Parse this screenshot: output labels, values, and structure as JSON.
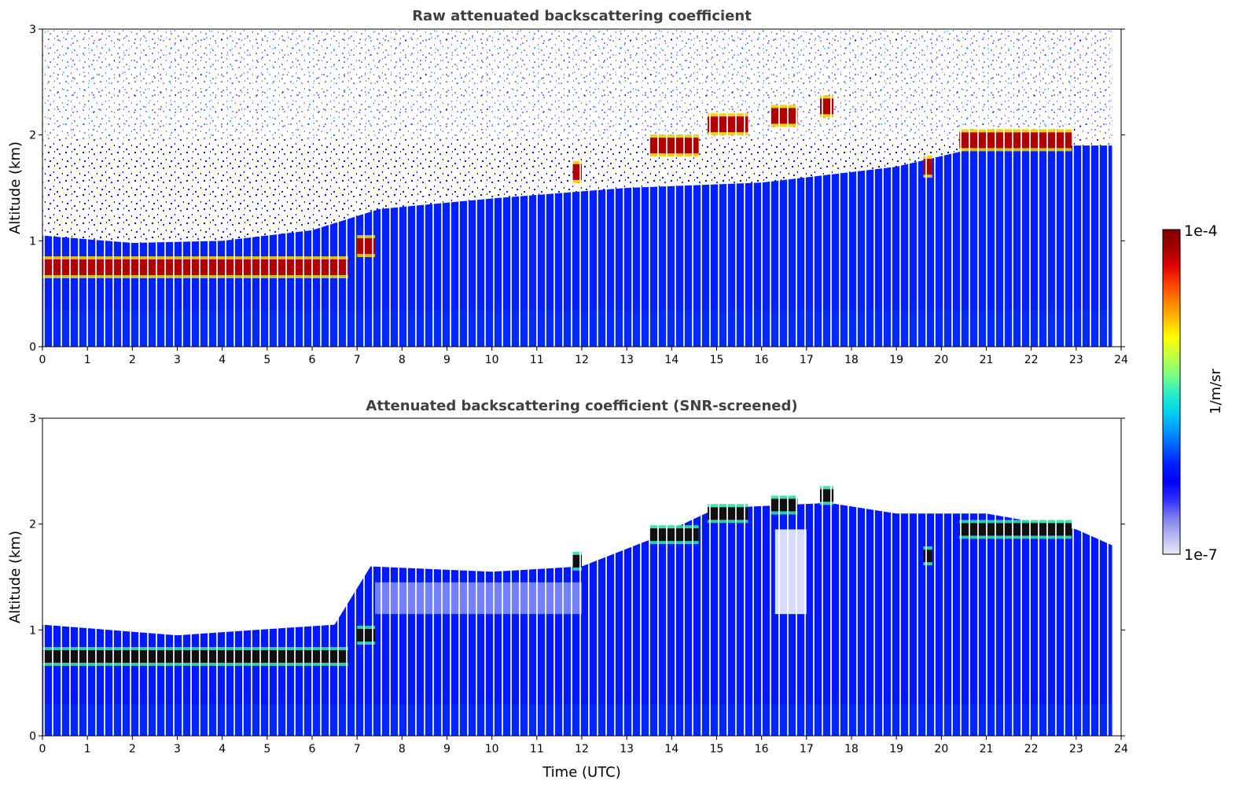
{
  "chart_data": [
    {
      "type": "heatmap",
      "title": "Raw attenuated backscattering coefficient",
      "xlabel": "",
      "ylabel": "Altitude (km)",
      "xlim": [
        0,
        24
      ],
      "ylim": [
        0,
        3
      ],
      "x_ticks": [
        "0",
        "1",
        "2",
        "3",
        "4",
        "5",
        "6",
        "7",
        "8",
        "9",
        "10",
        "11",
        "12",
        "13",
        "14",
        "15",
        "16",
        "17",
        "18",
        "19",
        "20",
        "21",
        "22",
        "23",
        "24"
      ],
      "y_ticks": [
        "0",
        "1",
        "2",
        "3"
      ],
      "color_scale": "log",
      "cloud_layers": [
        {
          "t_start": 0.0,
          "t_end": 6.8,
          "altitude_km": 0.75
        },
        {
          "t_start": 7.0,
          "t_end": 7.4,
          "altitude_km": 0.95
        },
        {
          "t_start": 11.8,
          "t_end": 12.0,
          "altitude_km": 1.65
        },
        {
          "t_start": 13.5,
          "t_end": 14.6,
          "altitude_km": 1.9
        },
        {
          "t_start": 14.8,
          "t_end": 15.7,
          "altitude_km": 2.1
        },
        {
          "t_start": 16.2,
          "t_end": 16.8,
          "altitude_km": 2.18
        },
        {
          "t_start": 17.3,
          "t_end": 17.6,
          "altitude_km": 2.27
        },
        {
          "t_start": 19.6,
          "t_end": 19.8,
          "altitude_km": 1.7
        },
        {
          "t_start": 20.4,
          "t_end": 22.9,
          "altitude_km": 1.95
        }
      ]
    },
    {
      "type": "heatmap",
      "title": "Attenuated backscattering coefficient (SNR-screened)",
      "xlabel": "Time (UTC)",
      "ylabel": "Altitude (km)",
      "xlim": [
        0,
        24
      ],
      "ylim": [
        0,
        3
      ],
      "x_ticks": [
        "0",
        "1",
        "2",
        "3",
        "4",
        "5",
        "6",
        "7",
        "8",
        "9",
        "10",
        "11",
        "12",
        "13",
        "14",
        "15",
        "16",
        "17",
        "18",
        "19",
        "20",
        "21",
        "22",
        "23",
        "24"
      ],
      "y_ticks": [
        "0",
        "1",
        "2",
        "3"
      ],
      "color_scale": "log",
      "boundary_layer_top_km": [
        {
          "t": 0,
          "h": 1.05
        },
        {
          "t": 3,
          "h": 0.95
        },
        {
          "t": 6.5,
          "h": 1.05
        },
        {
          "t": 7.3,
          "h": 1.6
        },
        {
          "t": 10,
          "h": 1.55
        },
        {
          "t": 12,
          "h": 1.6
        },
        {
          "t": 13.5,
          "h": 1.85
        },
        {
          "t": 15,
          "h": 2.15
        },
        {
          "t": 17.5,
          "h": 2.2
        },
        {
          "t": 19,
          "h": 2.1
        },
        {
          "t": 21,
          "h": 2.1
        },
        {
          "t": 23,
          "h": 1.95
        },
        {
          "t": 23.8,
          "h": 1.8
        }
      ]
    }
  ],
  "colorbar": {
    "label": "1/m/sr",
    "max_label": "1e-4",
    "min_label": "1e-7",
    "colors": [
      "#e8e8f8",
      "#b8b8f0",
      "#8080f0",
      "#3030ff",
      "#0000ff",
      "#0020ff",
      "#0060ff",
      "#00a0ff",
      "#00d8e8",
      "#30f0c0",
      "#80ff80",
      "#c0ff40",
      "#ffff00",
      "#ffc000",
      "#ff8000",
      "#ff4000",
      "#e00000",
      "#a00000",
      "#800000"
    ]
  }
}
